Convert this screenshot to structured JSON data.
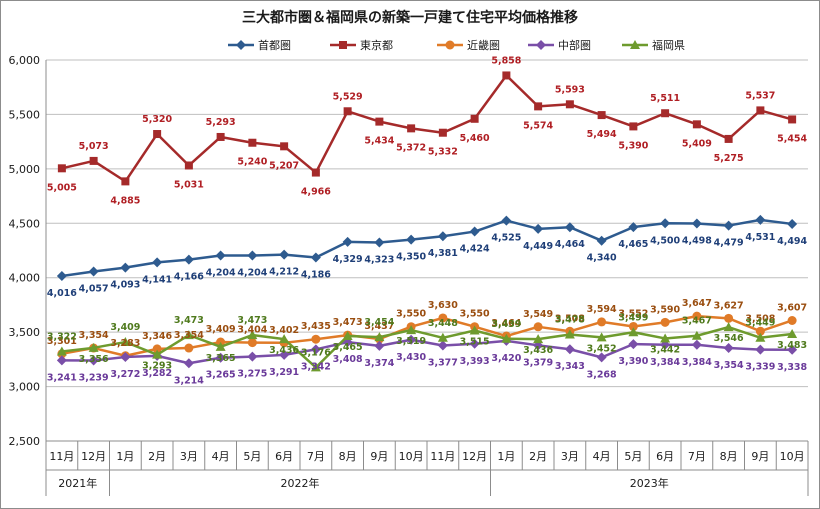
{
  "chart_data": {
    "type": "line",
    "title": "三大都市圏＆福岡県の新築一戸建て住宅平均価格推移",
    "xlabel": "",
    "ylabel": "",
    "ylim": [
      2500,
      6000
    ],
    "yticks": [
      "2,500",
      "3,000",
      "3,500",
      "4,000",
      "4,500",
      "5,000",
      "5,500",
      "6,000"
    ],
    "ytick_values": [
      2500,
      3000,
      3500,
      4000,
      4500,
      5000,
      5500,
      6000
    ],
    "grid": true,
    "legend_placement": "top-center",
    "categories": [
      "11月",
      "12月",
      "1月",
      "2月",
      "3月",
      "4月",
      "5月",
      "6月",
      "7月",
      "8月",
      "9月",
      "10月",
      "11月",
      "12月",
      "1月",
      "2月",
      "3月",
      "4月",
      "5月",
      "6月",
      "7月",
      "8月",
      "9月",
      "10月"
    ],
    "year_groups": [
      {
        "label": "2021年",
        "start": 0,
        "end": 1
      },
      {
        "label": "2022年",
        "start": 2,
        "end": 13
      },
      {
        "label": "2023年",
        "start": 14,
        "end": 23
      }
    ],
    "series": [
      {
        "name": "首都圏",
        "color": "#2e5b8f",
        "marker": "diamond",
        "values": [
          4016,
          4057,
          4093,
          4141,
          4166,
          4204,
          4204,
          4212,
          4186,
          4329,
          4323,
          4350,
          4381,
          4424,
          4525,
          4449,
          4464,
          4340,
          4465,
          4500,
          4498,
          4479,
          4531,
          4494
        ],
        "labels": [
          "4,016",
          "4,057",
          "4,093",
          "4,141",
          "4,166",
          "4,204",
          "4,204",
          "4,212",
          "4,186",
          "4,329",
          "4,323",
          "4,350",
          "4,381",
          "4,424",
          "4,525",
          "4,449",
          "4,464",
          "4,340",
          "4,465",
          "4,500",
          "4,498",
          "4,479",
          "4,531",
          "4,494"
        ]
      },
      {
        "name": "東京都",
        "color": "#a52a2a",
        "marker": "square",
        "values": [
          5005,
          5073,
          4885,
          5320,
          5031,
          5293,
          5240,
          5207,
          4966,
          5529,
          5434,
          5372,
          5332,
          5460,
          5858,
          5574,
          5593,
          5494,
          5390,
          5511,
          5409,
          5275,
          5537,
          5454
        ],
        "labels": [
          "5,005",
          "5,073",
          "4,885",
          "5,320",
          "5,031",
          "5,293",
          "5,240",
          "5,207",
          "4,966",
          "5,529",
          "5,434",
          "5,372",
          "5,332",
          "5,460",
          "5,858",
          "5,574",
          "5,593",
          "5,494",
          "5,390",
          "5,511",
          "5,409",
          "5,275",
          "5,537",
          "5,454"
        ]
      },
      {
        "name": "近畿圏",
        "color": "#e07b28",
        "marker": "circle",
        "values": [
          3301,
          3354,
          3283,
          3346,
          3354,
          3409,
          3404,
          3402,
          3435,
          3473,
          3437,
          3550,
          3630,
          3550,
          3464,
          3549,
          3508,
          3594,
          3552,
          3590,
          3647,
          3627,
          3508,
          3607
        ],
        "labels": [
          "3,301",
          "3,354",
          "3,283",
          "3,346",
          "3,354",
          "3,409",
          "3,404",
          "3,402",
          "3,435",
          "3,473",
          "3,437",
          "3,550",
          "3,630",
          "3,550",
          "3,464",
          "3,549",
          "3,508",
          "3,594",
          "3,552",
          "3,590",
          "3,647",
          "3,627",
          "3,508",
          "3,607"
        ]
      },
      {
        "name": "中部圏",
        "color": "#7a4fa8",
        "marker": "diamond",
        "values": [
          3241,
          3239,
          3272,
          3282,
          3214,
          3265,
          3275,
          3291,
          3342,
          3408,
          3374,
          3430,
          3377,
          3393,
          3420,
          3379,
          3343,
          3268,
          3390,
          3384,
          3384,
          3354,
          3339,
          3338
        ],
        "labels": [
          "3,241",
          "3,239",
          "3,272",
          "3,282",
          "3,214",
          "3,265",
          "3,275",
          "3,291",
          "3,342",
          "3,408",
          "3,374",
          "3,430",
          "3,377",
          "3,393",
          "3,420",
          "3,379",
          "3,343",
          "3,268",
          "3,390",
          "3,384",
          "3,384",
          "3,354",
          "3,339",
          "3,338"
        ]
      },
      {
        "name": "福岡県",
        "color": "#6e9b2e",
        "marker": "triangle",
        "values": [
          3322,
          3356,
          3409,
          3293,
          3473,
          3365,
          3473,
          3436,
          3176,
          3465,
          3454,
          3519,
          3448,
          3515,
          3439,
          3436,
          3478,
          3452,
          3499,
          3442,
          3467,
          3546,
          3449,
          3483
        ],
        "labels": [
          "3,322",
          "3,356",
          "3,409",
          "3,293",
          "3,473",
          "3,365",
          "3,473",
          "3,436",
          "3,176",
          "3,465",
          "3,454",
          "3,519",
          "3,448",
          "3,515",
          "3,439",
          "3,436",
          "3,478",
          "3,452",
          "3,499",
          "3,442",
          "3,467",
          "3,546",
          "3,449",
          "3,483"
        ]
      }
    ],
    "label_colors": {
      "首都圏": "#1f3f78",
      "東京都": "#b01f24",
      "近畿圏": "#9a4e10",
      "中部圏": "#6a3a9a",
      "福岡県": "#4f7a1d"
    }
  }
}
